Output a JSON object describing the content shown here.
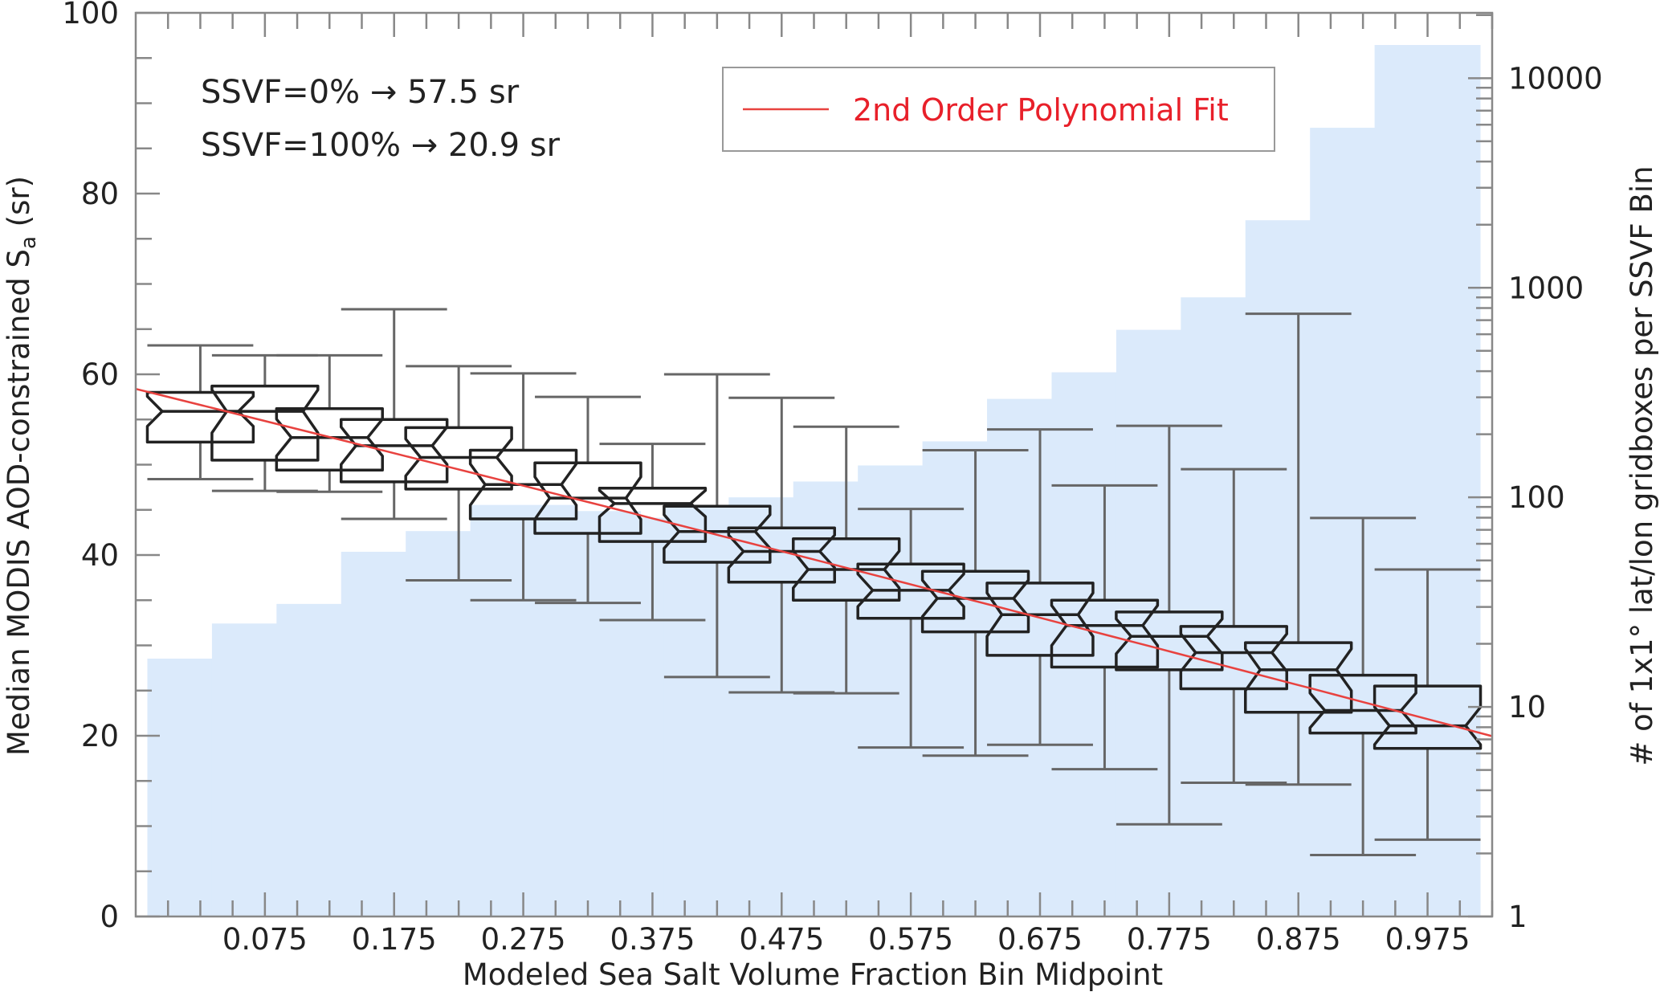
{
  "chart_data": {
    "type": "box",
    "xlabel": "Modeled Sea Salt Volume Fraction Bin Midpoint",
    "ylabel_main": "Median MODIS AOD-constrained S",
    "ylabel_sub": "a",
    "ylabel_end": " (sr)",
    "y2label": "# of 1x1° lat/lon gridboxes per SSVF Bin",
    "xlim": [
      -0.025,
      1.025
    ],
    "ylim": [
      0,
      100
    ],
    "y2lim": [
      1,
      20500
    ],
    "y2scale": "log",
    "x_ticks": [
      0.075,
      0.175,
      0.275,
      0.375,
      0.475,
      0.575,
      0.675,
      0.775,
      0.875,
      0.975
    ],
    "x_tick_labels": [
      "0.075",
      "0.175",
      "0.275",
      "0.375",
      "0.475",
      "0.575",
      "0.675",
      "0.775",
      "0.875",
      "0.975"
    ],
    "y_ticks": [
      0,
      20,
      40,
      60,
      80,
      100
    ],
    "y_tick_labels": [
      "0",
      "20",
      "40",
      "60",
      "80",
      "100"
    ],
    "y2_ticks": [
      1,
      10,
      100,
      1000,
      10000
    ],
    "y2_tick_labels": [
      "1",
      "10",
      "100",
      "1000",
      "10000"
    ],
    "grid": false,
    "annotations": [
      "SSVF=0% → 57.5 sr",
      "SSVF=100% → 20.9 sr"
    ],
    "legend": {
      "position": "top-right",
      "entries": [
        "2nd Order Polynomial Fit"
      ]
    },
    "colors": {
      "bars": "#dbeafb",
      "box": "#222222",
      "whisker": "#666666",
      "fit": "#e8423f",
      "legend_text": "#e8202a"
    },
    "bins": [
      0.025,
      0.075,
      0.125,
      0.175,
      0.225,
      0.275,
      0.325,
      0.375,
      0.425,
      0.475,
      0.525,
      0.575,
      0.625,
      0.675,
      0.725,
      0.775,
      0.825,
      0.875,
      0.925,
      0.975
    ],
    "counts": [
      17,
      25,
      31,
      55,
      69,
      92,
      86,
      80,
      90,
      100,
      119,
      142,
      185,
      295,
      395,
      630,
      900,
      2100,
      5800,
      14400
    ],
    "whisker_high": [
      63.2,
      62.1,
      62.1,
      67.2,
      60.9,
      60.1,
      57.5,
      52.3,
      60.0,
      57.4,
      54.2,
      45.1,
      51.6,
      53.9,
      47.7,
      54.3,
      49.5,
      66.7,
      44.1,
      38.4
    ],
    "q3": [
      58.0,
      58.7,
      56.2,
      55.0,
      54.1,
      51.6,
      50.2,
      47.4,
      45.4,
      43.0,
      41.8,
      39.0,
      38.2,
      36.9,
      35.0,
      33.7,
      32.1,
      30.3,
      26.7,
      25.5
    ],
    "median": [
      55.9,
      55.9,
      53.0,
      52.1,
      50.8,
      47.8,
      46.3,
      45.7,
      42.6,
      40.4,
      38.4,
      36.1,
      35.2,
      33.4,
      32.2,
      31.0,
      29.2,
      27.3,
      22.8,
      21.1
    ],
    "q1": [
      52.5,
      50.5,
      49.4,
      48.1,
      47.3,
      44.0,
      42.4,
      41.5,
      39.2,
      37.0,
      35.0,
      33.0,
      31.5,
      28.9,
      27.6,
      27.3,
      25.2,
      22.6,
      20.3,
      18.6
    ],
    "whisker_low": [
      48.4,
      47.1,
      47.0,
      44.0,
      37.2,
      35.0,
      34.7,
      32.8,
      26.5,
      24.8,
      24.7,
      18.7,
      17.8,
      19.0,
      16.3,
      10.2,
      14.8,
      14.6,
      6.8,
      8.5
    ],
    "fit": {
      "x": [
        0,
        0.5,
        1
      ],
      "y": [
        57.5,
        39.5,
        20.9
      ]
    }
  }
}
